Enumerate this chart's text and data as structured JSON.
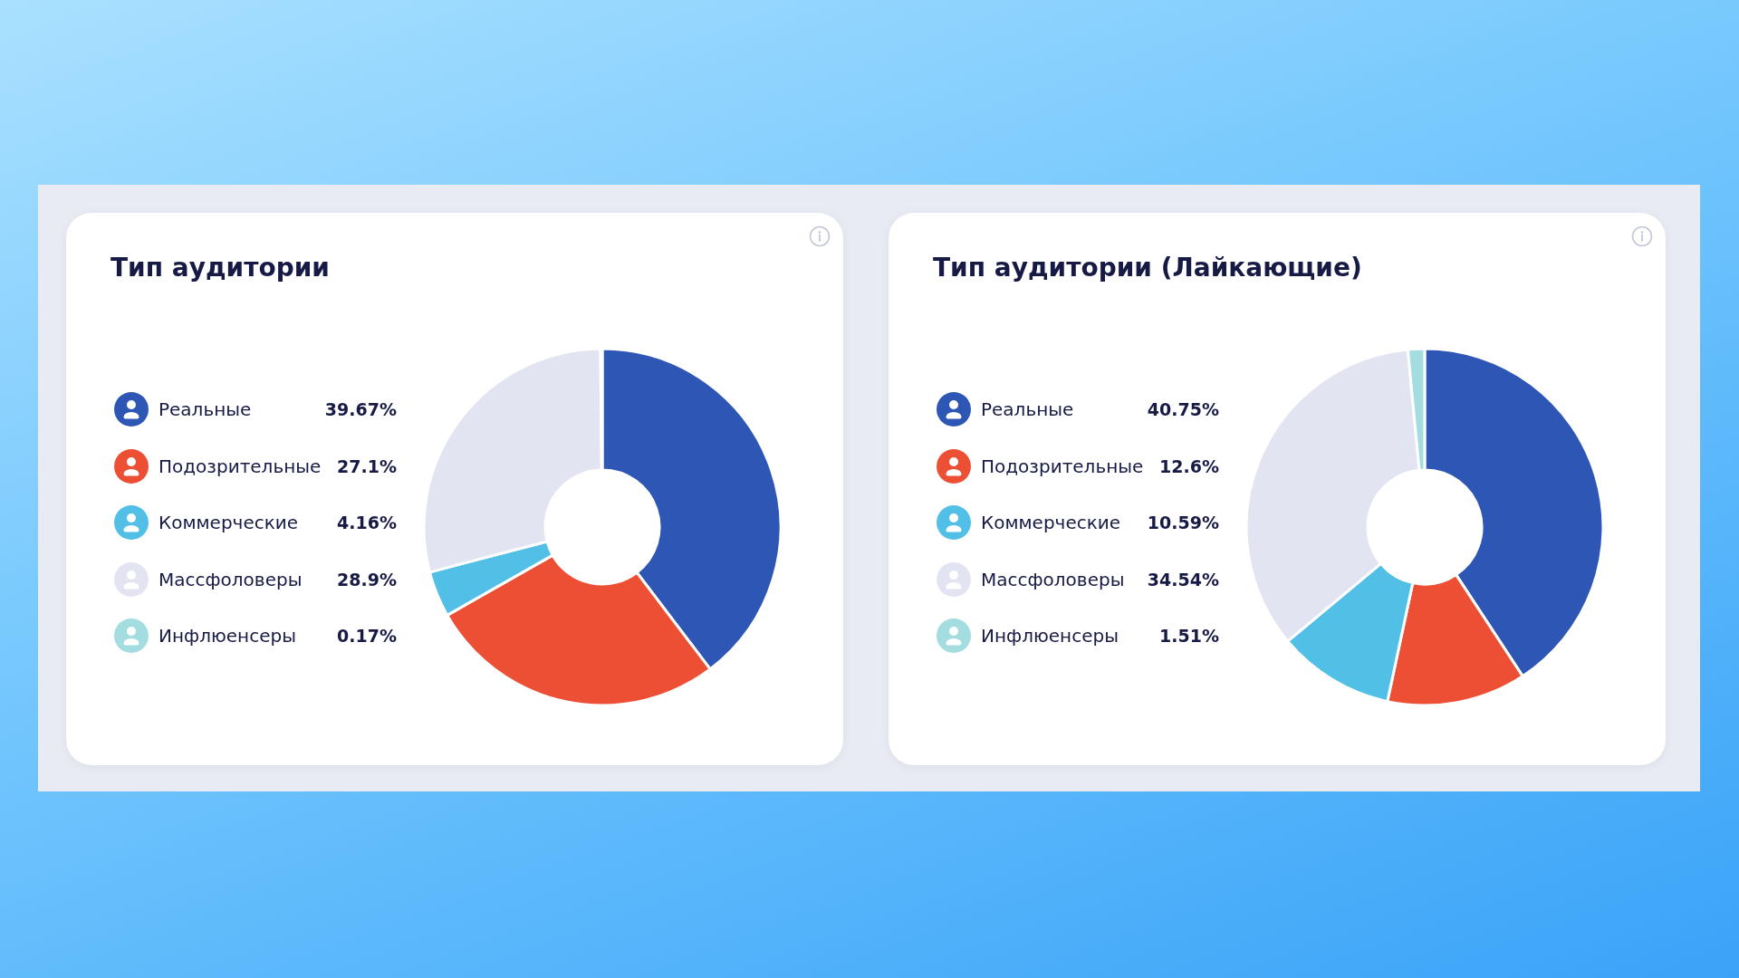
{
  "chart_data": [
    {
      "type": "donut",
      "title": "Тип аудитории",
      "categories": [
        "Реальные",
        "Подозрительные",
        "Коммерческие",
        "Массфоловеры",
        "Инфлюенсеры"
      ],
      "values": [
        39.67,
        27.1,
        4.16,
        28.9,
        0.17
      ],
      "value_labels": [
        "39.67%",
        "27.1%",
        "4.16%",
        "28.9%",
        "0.17%"
      ],
      "colors": [
        "#2e56b5",
        "#ec4f33",
        "#52c0e6",
        "#e2e5f1",
        "#a3dde0"
      ],
      "legend": "left"
    },
    {
      "type": "donut",
      "title": "Тип аудитории (Лайкающие)",
      "categories": [
        "Реальные",
        "Подозрительные",
        "Коммерческие",
        "Массфоловеры",
        "Инфлюенсеры"
      ],
      "values": [
        40.75,
        12.6,
        10.59,
        34.54,
        1.51
      ],
      "value_labels": [
        "40.75%",
        "12.6%",
        "10.59%",
        "34.54%",
        "1.51%"
      ],
      "colors": [
        "#2e56b5",
        "#ec4f33",
        "#52c0e6",
        "#e2e5f1",
        "#a3dde0"
      ],
      "legend": "left"
    }
  ]
}
